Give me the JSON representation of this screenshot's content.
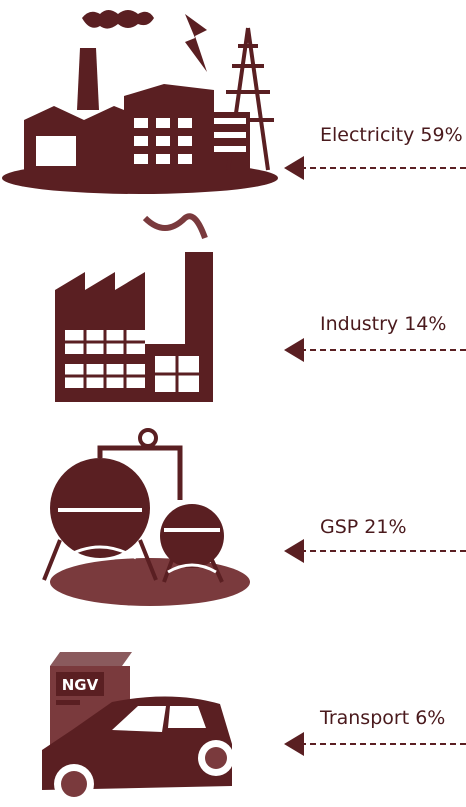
{
  "items": [
    {
      "label": "Electricity 59%"
    },
    {
      "label": "Industry 14%"
    },
    {
      "label": "GSP 21%"
    },
    {
      "label": "Transport 6%"
    }
  ],
  "ngv": "NGV"
}
